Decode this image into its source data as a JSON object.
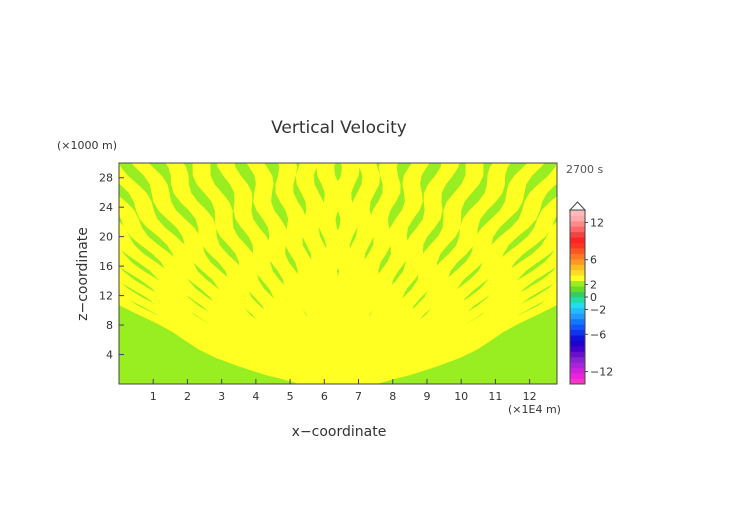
{
  "chart_data": {
    "type": "heatmap",
    "title": "Vertical Velocity",
    "xlabel": "x−coordinate",
    "ylabel": "z−coordinate",
    "x_unit": "(×1E4 m)",
    "y_unit": "(×1000 m)",
    "time_label": "2700 s",
    "xlim": [
      0,
      12.8
    ],
    "ylim": [
      0,
      30
    ],
    "x_ticks": [
      "1",
      "2",
      "3",
      "4",
      "5",
      "6",
      "7",
      "8",
      "9",
      "10",
      "11",
      "12"
    ],
    "y_ticks": [
      "4",
      "8",
      "12",
      "16",
      "20",
      "24",
      "28"
    ],
    "field_description": "gravity-wave ray pattern radiating from source near x=6.4, z=0",
    "band_colors": {
      "low": "#99ee22",
      "high": "#ffff22"
    },
    "colorbar": {
      "tick_labels": [
        "12",
        "6",
        "2",
        "0",
        "−2",
        "−6",
        "−12"
      ],
      "tick_values": [
        12,
        6,
        2,
        0,
        -2,
        -6,
        -12
      ],
      "range": [
        -14,
        14
      ],
      "colors": [
        "#ff33cc",
        "#ee22dd",
        "#cc22dd",
        "#aa22dd",
        "#8822cc",
        "#6611cc",
        "#4400cc",
        "#2200cc",
        "#1111dd",
        "#1133ee",
        "#1155ff",
        "#1177ff",
        "#2299ff",
        "#22bbff",
        "#22ddee",
        "#22ddaa",
        "#33cc66",
        "#66dd22",
        "#99ee22",
        "#ffff22",
        "#ffdd22",
        "#ffbb22",
        "#ff9922",
        "#ff7722",
        "#ff5522",
        "#ff3322",
        "#ff2222",
        "#ee4444",
        "#ff6666",
        "#ff8888",
        "#ffaaaa",
        "#ffbbbb"
      ]
    }
  }
}
